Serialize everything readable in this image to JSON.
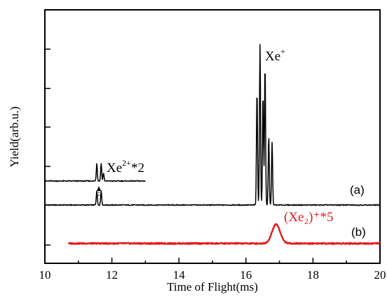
{
  "chart_data": {
    "type": "line",
    "xlabel": "Time of Flight(ms)",
    "ylabel": "Yield(arb.u.)",
    "xlim": [
      10,
      20
    ],
    "xticks": [
      "10",
      "12",
      "14",
      "16",
      "18",
      "20"
    ],
    "grid": false,
    "legend": "none",
    "labels": {
      "xe_plus_base": "Xe",
      "xe_plus_sup": "+",
      "xe2_base": "Xe",
      "xe2_sup": "2+",
      "xe2_suffix": "*2",
      "panel_a": "(a)",
      "panel_b": "(b)",
      "red_label": "(Xe₂)⁺*5"
    },
    "series": [
      {
        "color": "#000000",
        "baseline": 0,
        "x_range": [
          10,
          20
        ],
        "peaks": [
          {
            "x": 11.55,
            "y": 0.09
          },
          {
            "x": 11.68,
            "y": 0.09
          },
          {
            "x": 16.33,
            "y": 0.72
          },
          {
            "x": 16.42,
            "y": 1.0
          },
          {
            "x": 16.51,
            "y": 0.7
          },
          {
            "x": 16.57,
            "y": 0.88
          },
          {
            "x": 16.68,
            "y": 0.43
          },
          {
            "x": 16.78,
            "y": 0.39
          }
        ]
      },
      {
        "color": "#000000",
        "baseline": 0.15,
        "x_range": [
          10,
          13
        ],
        "peaks": [
          {
            "x": 11.55,
            "y": 0.11
          },
          {
            "x": 11.68,
            "y": 0.11
          },
          {
            "x": 11.75,
            "y": 0.05
          }
        ]
      },
      {
        "color": "#e41a1c",
        "baseline": -0.24,
        "x_range": [
          10.7,
          20
        ],
        "peaks": [
          {
            "x": 16.9,
            "y": 0.12
          }
        ]
      }
    ]
  }
}
